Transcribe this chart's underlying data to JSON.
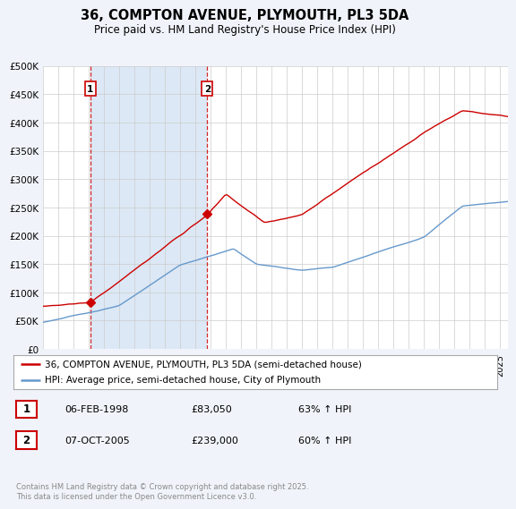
{
  "title": "36, COMPTON AVENUE, PLYMOUTH, PL3 5DA",
  "subtitle": "Price paid vs. HM Land Registry's House Price Index (HPI)",
  "bg_color": "#f0f4fa",
  "plot_bg_color": "#ffffff",
  "red_color": "#cc0000",
  "blue_color": "#6699cc",
  "shade_color": "#dce8f5",
  "grid_color": "#cccccc",
  "ylim": [
    0,
    500000
  ],
  "yticks": [
    0,
    50000,
    100000,
    150000,
    200000,
    250000,
    300000,
    350000,
    400000,
    450000,
    500000
  ],
  "ytick_labels": [
    "£0",
    "£50K",
    "£100K",
    "£150K",
    "£200K",
    "£250K",
    "£300K",
    "£350K",
    "£400K",
    "£450K",
    "£500K"
  ],
  "xlim_start": 1995,
  "xlim_end": 2025.5,
  "sale1_x": 1998.1,
  "sale1_y": 83050,
  "sale1_label": "1",
  "sale2_x": 2005.77,
  "sale2_y": 239000,
  "sale2_label": "2",
  "legend_label_red": "36, COMPTON AVENUE, PLYMOUTH, PL3 5DA (semi-detached house)",
  "legend_label_blue": "HPI: Average price, semi-detached house, City of Plymouth",
  "footer3": "Contains HM Land Registry data © Crown copyright and database right 2025.\nThis data is licensed under the Open Government Licence v3.0."
}
